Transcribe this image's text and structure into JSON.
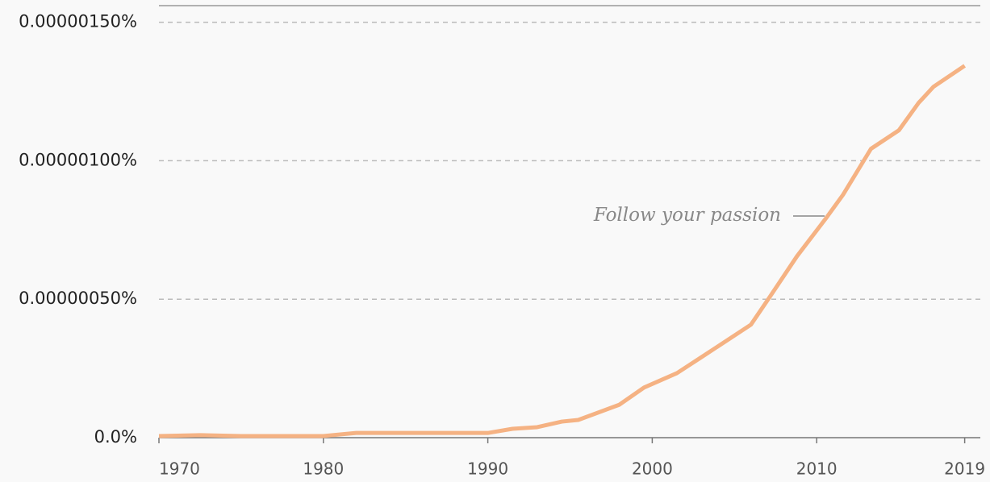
{
  "chart_data": {
    "type": "line",
    "annotation": "Follow your passion",
    "x": [
      1970,
      1972.5,
      1975,
      1980,
      1982,
      1990,
      1991.5,
      1993,
      1994.5,
      1995.5,
      1998,
      1999.5,
      2001.5,
      2003,
      2006,
      2007.2,
      2008.8,
      2010.6,
      2011.6,
      2013.3,
      2015,
      2016.2,
      2017.1,
      2019
    ],
    "series": [
      {
        "color": "#f5b283",
        "values": [
          6e-09,
          9e-09,
          6e-09,
          6e-09,
          1.7e-08,
          1.7e-08,
          3.2e-08,
          3.8e-08,
          5.8e-08,
          6.4e-08,
          1.19e-07,
          1.81e-07,
          2.33e-07,
          2.91e-07,
          4.08e-07,
          5.13e-07,
          6.55e-07,
          7.95e-07,
          8.77e-07,
          1.043e-06,
          1.11e-06,
          1.209e-06,
          1.267e-06,
          1.343e-06
        ]
      }
    ],
    "xlim": [
      1970,
      2020
    ],
    "xticks": [
      1970,
      1980,
      1990,
      2000,
      2010,
      2019
    ],
    "ylim": [
      0,
      1.56e-06
    ],
    "yticks": [
      {
        "value": 0,
        "label": "0.0%"
      },
      {
        "value": 5e-07,
        "label": "0.00000050%"
      },
      {
        "value": 1e-06,
        "label": "0.00000100%"
      },
      {
        "value": 1.5e-06,
        "label": "0.00000150%"
      }
    ],
    "grid": true
  }
}
